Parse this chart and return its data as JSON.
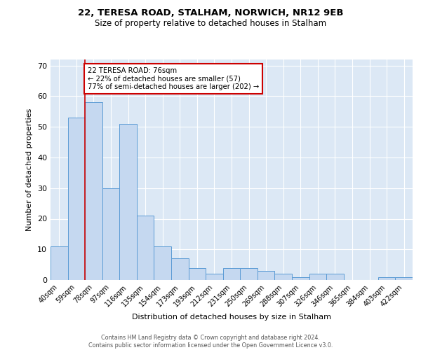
{
  "title1": "22, TERESA ROAD, STALHAM, NORWICH, NR12 9EB",
  "title2": "Size of property relative to detached houses in Stalham",
  "xlabel": "Distribution of detached houses by size in Stalham",
  "ylabel": "Number of detached properties",
  "categories": [
    "40sqm",
    "59sqm",
    "78sqm",
    "97sqm",
    "116sqm",
    "135sqm",
    "154sqm",
    "173sqm",
    "193sqm",
    "212sqm",
    "231sqm",
    "250sqm",
    "269sqm",
    "288sqm",
    "307sqm",
    "326sqm",
    "346sqm",
    "365sqm",
    "384sqm",
    "403sqm",
    "422sqm"
  ],
  "values": [
    11,
    53,
    58,
    30,
    51,
    21,
    11,
    7,
    4,
    2,
    4,
    4,
    3,
    2,
    1,
    2,
    2,
    0,
    0,
    1,
    1
  ],
  "bar_color": "#c5d8f0",
  "bar_edge_color": "#5b9bd5",
  "vline_idx": 2,
  "vline_color": "#cc0000",
  "annotation_text": "22 TERESA ROAD: 76sqm\n← 22% of detached houses are smaller (57)\n77% of semi-detached houses are larger (202) →",
  "annotation_box_color": "#ffffff",
  "annotation_box_edge": "#cc0000",
  "ylim": [
    0,
    72
  ],
  "yticks": [
    0,
    10,
    20,
    30,
    40,
    50,
    60,
    70
  ],
  "bg_color": "#dce8f5",
  "footnote": "Contains HM Land Registry data © Crown copyright and database right 2024.\nContains public sector information licensed under the Open Government Licence v3.0."
}
